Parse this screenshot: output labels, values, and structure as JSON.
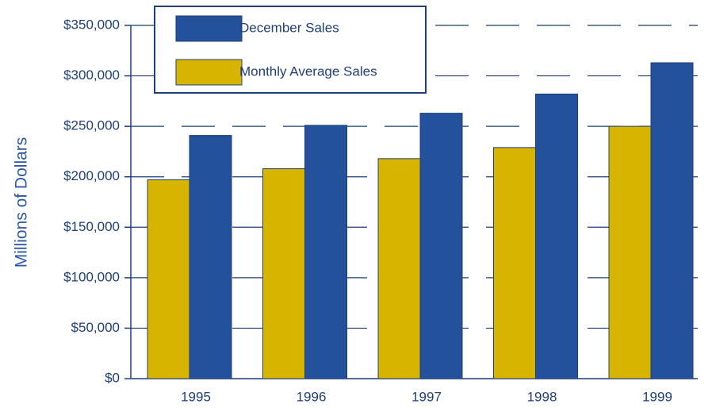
{
  "chart_data": {
    "type": "bar",
    "y_label": "Millions of Dollars",
    "categories": [
      "1995",
      "1996",
      "1997",
      "1998",
      "1999"
    ],
    "series": [
      {
        "name": "December Sales",
        "color": "#24519b",
        "values": [
          241000,
          251000,
          263000,
          282000,
          313000
        ]
      },
      {
        "name": "Monthly Average Sales",
        "color": "#d6b400",
        "values": [
          197000,
          208000,
          218000,
          229000,
          250000
        ]
      }
    ],
    "ylim": [
      0,
      350000
    ],
    "yticks": [
      {
        "value": 0,
        "label": "$0"
      },
      {
        "value": 50000,
        "label": "$50,000"
      },
      {
        "value": 100000,
        "label": "$100,000"
      },
      {
        "value": 150000,
        "label": "$150,000"
      },
      {
        "value": 200000,
        "label": "$200,000"
      },
      {
        "value": 250000,
        "label": "$250,000"
      },
      {
        "value": 300000,
        "label": "$300,000"
      },
      {
        "value": 350000,
        "label": "$350,000"
      }
    ],
    "grid": true
  }
}
